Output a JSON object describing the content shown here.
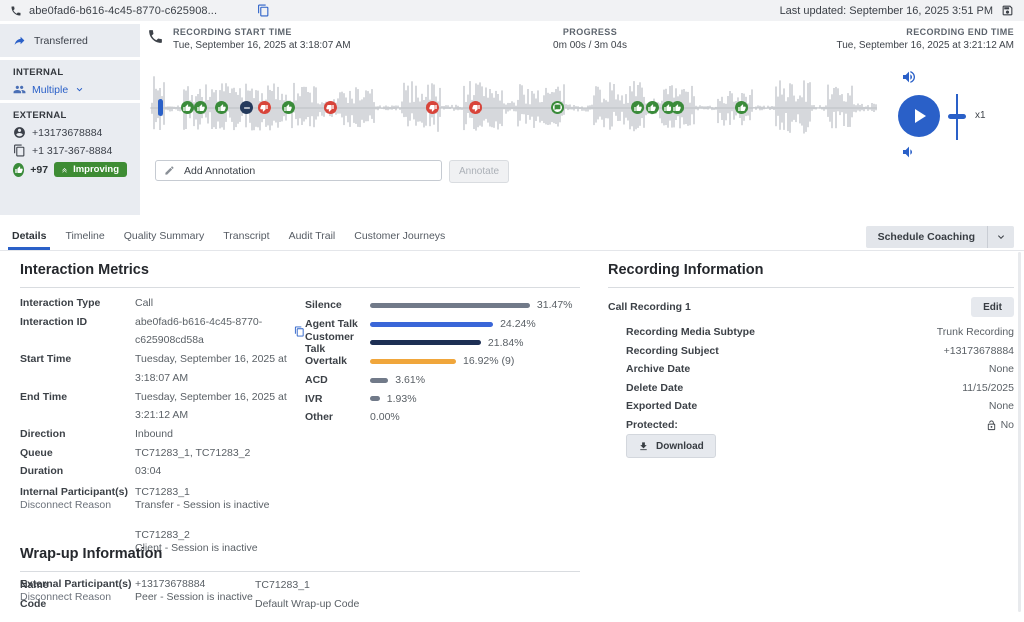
{
  "topbar": {
    "interaction_id_short": "abe0fad6-b616-4c45-8770-c625908...",
    "last_updated": "Last updated: September 16, 2025 3:51 PM"
  },
  "sidebar": {
    "transferred_label": "Transferred",
    "internal": {
      "label": "INTERNAL",
      "value": "Multiple"
    },
    "external": {
      "label": "EXTERNAL",
      "contact_primary": "+13173678884",
      "contact_secondary": "+1 317-367-8884",
      "sentiment_score": "+97",
      "sentiment_trend": "Improving"
    }
  },
  "player": {
    "start": {
      "label": "RECORDING START TIME",
      "value": "Tue, September 16, 2025 at 3:18:07 AM"
    },
    "progress": {
      "label": "PROGRESS",
      "value": "0m 00s / 3m 04s"
    },
    "end": {
      "label": "RECORDING END TIME",
      "value": "Tue, September 16, 2025 at 3:21:12 AM"
    },
    "speed_label": "x1",
    "annotation": {
      "placeholder": "Add Annotation",
      "button_label": "Annotate"
    },
    "playhead_pct": 1.4,
    "markers": [
      {
        "pos": 5.1,
        "type": "positive"
      },
      {
        "pos": 7.0,
        "type": "positive"
      },
      {
        "pos": 9.9,
        "type": "positive"
      },
      {
        "pos": 13.3,
        "type": "pause"
      },
      {
        "pos": 15.7,
        "type": "negative"
      },
      {
        "pos": 19.0,
        "type": "positive"
      },
      {
        "pos": 24.8,
        "type": "negative"
      },
      {
        "pos": 38.9,
        "type": "negative"
      },
      {
        "pos": 44.8,
        "type": "negative"
      },
      {
        "pos": 56.1,
        "type": "note"
      },
      {
        "pos": 67.1,
        "type": "positive"
      },
      {
        "pos": 69.1,
        "type": "positive"
      },
      {
        "pos": 71.3,
        "type": "positive"
      },
      {
        "pos": 72.5,
        "type": "positive"
      },
      {
        "pos": 81.4,
        "type": "positive"
      }
    ]
  },
  "tabs": {
    "items": [
      {
        "label": "Details"
      },
      {
        "label": "Timeline"
      },
      {
        "label": "Quality Summary"
      },
      {
        "label": "Transcript"
      },
      {
        "label": "Audit Trail"
      },
      {
        "label": "Customer Journeys"
      }
    ],
    "schedule_coaching_label": "Schedule Coaching"
  },
  "details": {
    "interaction_metrics": {
      "title": "Interaction Metrics",
      "fields": [
        {
          "label": "Interaction Type",
          "value": "Call"
        },
        {
          "label": "Interaction ID",
          "value": "abe0fad6-b616-4c45-8770-c625908cd58a"
        },
        {
          "label": "Start Time",
          "value": "Tuesday, September 16, 2025 at 3:18:07 AM"
        },
        {
          "label": "End Time",
          "value": "Tuesday, September 16, 2025 at 3:21:12 AM"
        },
        {
          "label": "Direction",
          "value": "Inbound"
        },
        {
          "label": "Queue",
          "value": "TC71283_1, TC71283_2"
        },
        {
          "label": "Duration",
          "value": "03:04"
        }
      ],
      "participants": [
        {
          "label": "Internal Participant(s)",
          "sublabel": "Disconnect Reason",
          "entries": [
            {
              "name": "TC71283_1",
              "reason": "Transfer - Session is inactive"
            },
            {
              "name": "TC71283_2",
              "reason": "Client - Session is inactive"
            }
          ]
        },
        {
          "label": "External Participant(s)",
          "sublabel": "Disconnect Reason",
          "entries": [
            {
              "name": "+13173678884",
              "reason": "Peer - Session is inactive"
            }
          ]
        }
      ],
      "bars": [
        {
          "label": "Silence",
          "pct": 31.47,
          "display": "31.47%",
          "color": "#717a89"
        },
        {
          "label": "Agent Talk",
          "pct": 24.24,
          "display": "24.24%",
          "color": "#3a66d8"
        },
        {
          "label": "Customer Talk",
          "pct": 21.84,
          "display": "21.84%",
          "color": "#1d2f54"
        },
        {
          "label": "Overtalk",
          "pct": 16.92,
          "display": "16.92% (9)",
          "color": "#f0a63b"
        },
        {
          "label": "ACD",
          "pct": 3.61,
          "display": "3.61%",
          "color": "#717a89"
        },
        {
          "label": "IVR",
          "pct": 1.93,
          "display": "1.93%",
          "color": "#717a89"
        },
        {
          "label": "Other",
          "pct": 0.0,
          "display": "0.00%",
          "color": "#717a89"
        }
      ]
    },
    "recording_information": {
      "title": "Recording Information",
      "subtitle": "Call Recording 1",
      "edit_label": "Edit",
      "fields": [
        {
          "label": "Recording Media Subtype",
          "value": "Trunk Recording"
        },
        {
          "label": "Recording Subject",
          "value": "+13173678884"
        },
        {
          "label": "Archive Date",
          "value": "None"
        },
        {
          "label": "Delete Date",
          "value": "11/15/2025"
        },
        {
          "label": "Exported Date",
          "value": "None"
        },
        {
          "label": "Protected:",
          "value": "No"
        }
      ],
      "download_label": "Download"
    },
    "wrapup": {
      "title": "Wrap-up Information",
      "fields": [
        {
          "label": "Name",
          "value": "TC71283_1"
        },
        {
          "label": "Code",
          "value": "Default Wrap-up Code"
        }
      ]
    }
  },
  "colors": {
    "accent_blue": "#2a60c8",
    "positive_green": "#3a8b3a",
    "negative_red": "#d8443a",
    "pause_navy": "#253a5c",
    "badge_green": "#3e8c34",
    "overtalk_orange": "#f0a63b"
  }
}
